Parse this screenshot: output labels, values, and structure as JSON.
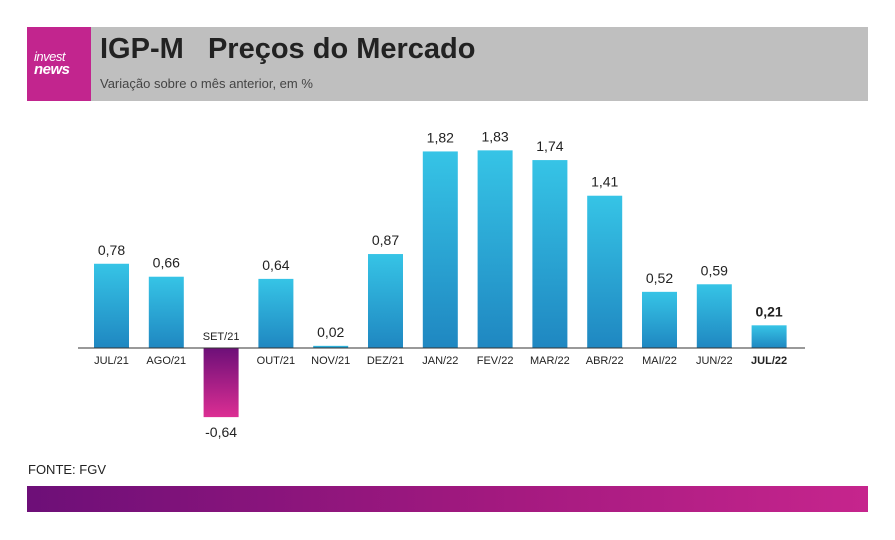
{
  "header": {
    "logo_line1": "invest",
    "logo_line2": "news",
    "title": "IGP-M   Preços do Mercado",
    "subtitle": "Variação sobre o mês anterior, em %"
  },
  "source": "FONTE: FGV",
  "colors": {
    "positive_top": "#36c4e6",
    "positive_bottom": "#1f87c1",
    "negative_top": "#6d0f78",
    "negative_bottom": "#dc2e93",
    "header_bg": "#bfbfbf",
    "brand": "#c2258e"
  },
  "chart_data": {
    "type": "bar",
    "categories": [
      "JUL/21",
      "AGO/21",
      "SET/21",
      "OUT/21",
      "NOV/21",
      "DEZ/21",
      "JAN/22",
      "FEV/22",
      "MAR/22",
      "ABR/22",
      "MAI/22",
      "JUN/22",
      "JUL/22"
    ],
    "values": [
      0.78,
      0.66,
      -0.64,
      0.64,
      0.02,
      0.87,
      1.82,
      1.83,
      1.74,
      1.41,
      0.52,
      0.59,
      0.21
    ],
    "value_labels": [
      "0,78",
      "0,66",
      "-0,64",
      "0,64",
      "0,02",
      "0,87",
      "1,82",
      "1,83",
      "1,74",
      "1,41",
      "0,52",
      "0,59",
      "0,21"
    ],
    "highlight_index": 12,
    "ylim": [
      -0.64,
      1.83
    ],
    "grid": false,
    "legend": "none"
  }
}
